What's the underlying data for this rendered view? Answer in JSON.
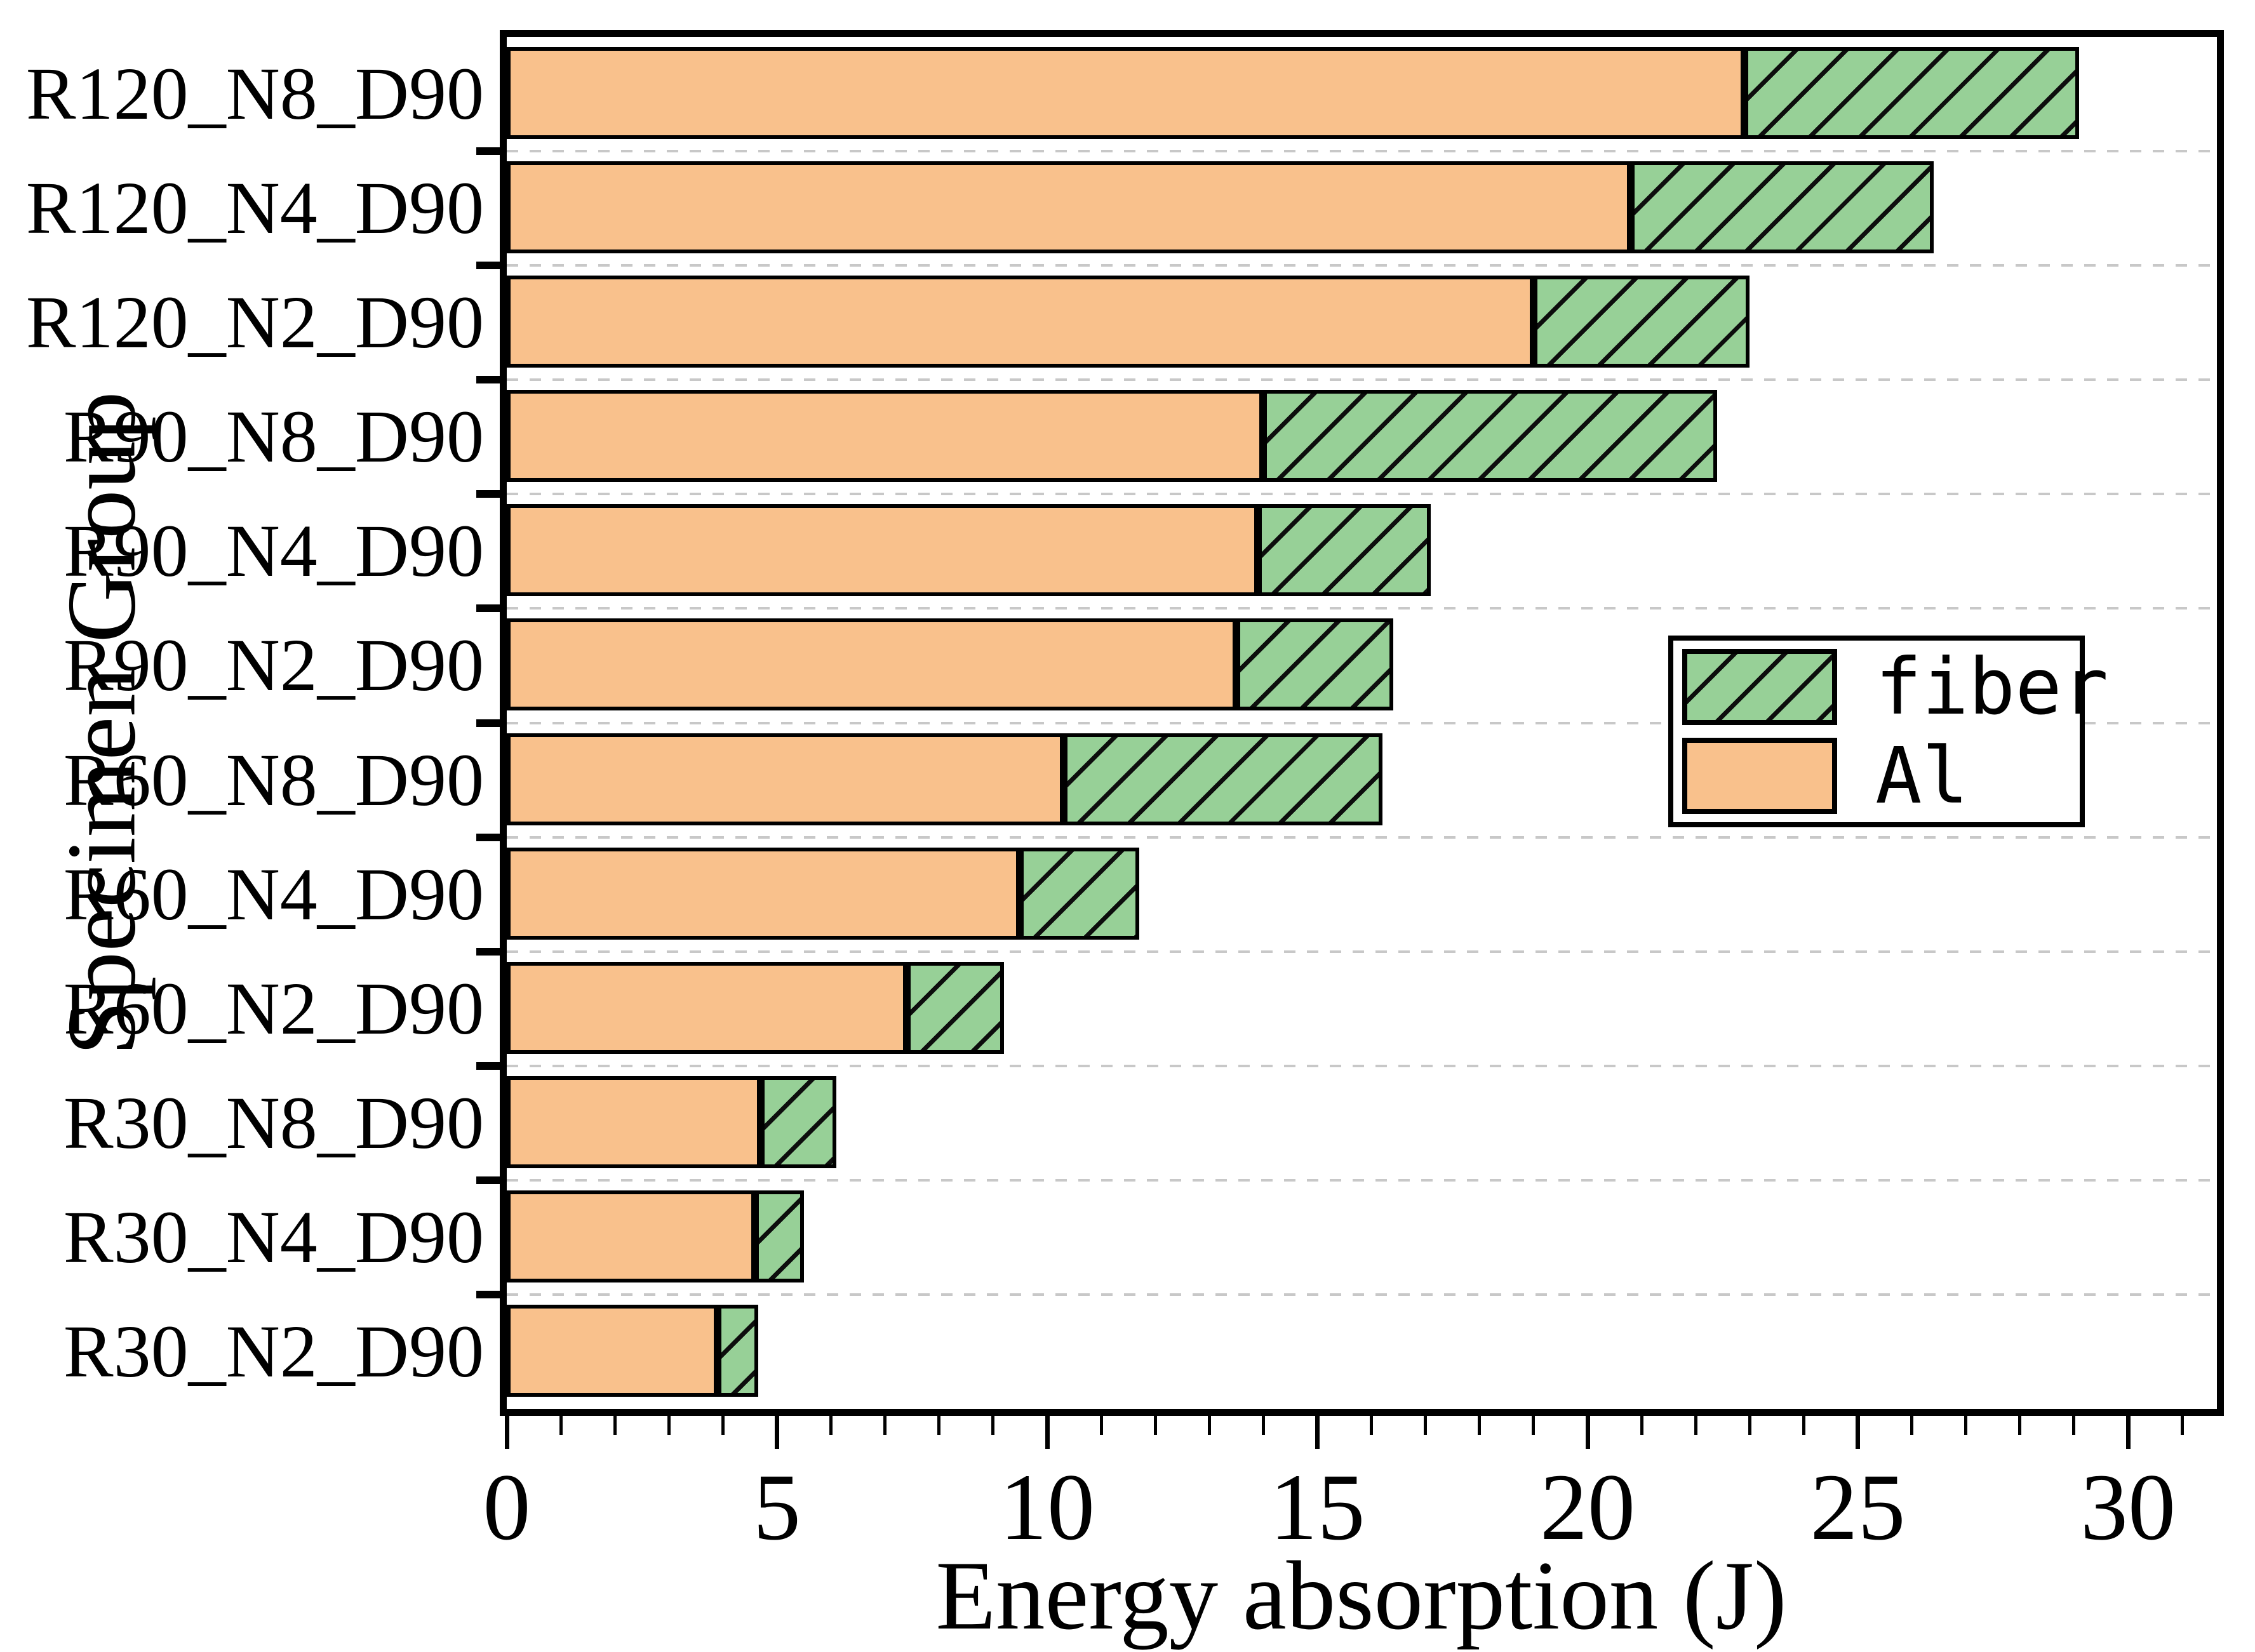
{
  "figure": {
    "background": "#ffffff"
  },
  "chart_data": {
    "type": "bar",
    "orientation": "horizontal",
    "stacked": true,
    "title": "",
    "xlabel": "Energy absorption (J)",
    "ylabel": "Specimen Group",
    "categories": [
      "R120_N8_D90",
      "R120_N4_D90",
      "R120_N2_D90",
      "R90_N8_D90",
      "R90_N4_D90",
      "R90_N2_D90",
      "R60_N8_D90",
      "R60_N4_D90",
      "R60_N2_D90",
      "R30_N8_D90",
      "R30_N4_D90",
      "R30_N2_D90"
    ],
    "series": [
      {
        "name": "Al",
        "color": "#F9C18C",
        "hatch": "none",
        "values": [
          22.9,
          20.8,
          19.0,
          14.0,
          13.9,
          13.5,
          10.3,
          9.5,
          7.4,
          4.7,
          4.6,
          3.9
        ]
      },
      {
        "name": "fiber",
        "color": "#97D097",
        "hatch": "diagonal-forward",
        "values": [
          6.2,
          5.6,
          4.0,
          8.4,
          3.2,
          2.9,
          5.9,
          2.2,
          1.8,
          1.4,
          0.9,
          0.75
        ]
      }
    ],
    "totals": [
      29.1,
      26.4,
      23.0,
      22.4,
      17.1,
      16.4,
      16.2,
      11.7,
      9.2,
      6.1,
      5.5,
      4.65
    ],
    "xlim": [
      0,
      31.65
    ],
    "x_major_ticks": [
      0,
      5,
      10,
      15,
      20,
      25,
      30
    ],
    "x_minor_step": 1,
    "grid": "horizontal dashed gray lines at category boundaries",
    "legend": {
      "position": "middle-right",
      "entries": [
        {
          "label": "fiber",
          "color": "#97D097",
          "hatched": true
        },
        {
          "label": "Al",
          "color": "#F9C18C",
          "hatched": false
        }
      ]
    },
    "colors": {
      "al_fill": "#F9C18C",
      "fiber_fill": "#97D097",
      "hatch_line": "#0d0d0d",
      "bar_edge": "#000000",
      "gridline": "#c8c8c8",
      "frame": "#000000",
      "text": "#000000"
    }
  }
}
